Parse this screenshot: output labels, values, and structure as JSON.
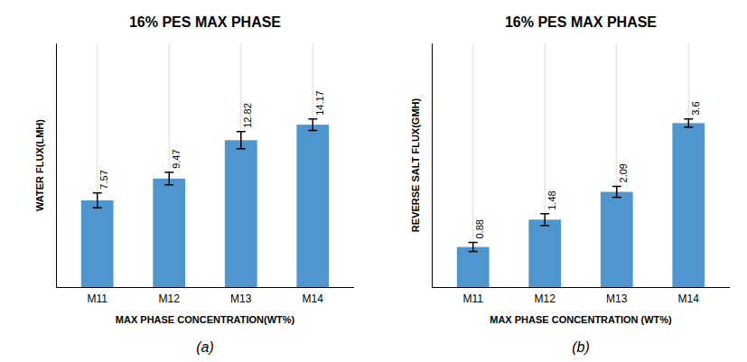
{
  "chart_data": [
    {
      "type": "bar",
      "title": "16% PES MAX PHASE",
      "x_label": "MAX PHASE CONCENTRATION(WT%)",
      "y_label": "WATER FLUX(LMH)",
      "categories": [
        "M11",
        "M12",
        "M13",
        "M14"
      ],
      "values": [
        7.57,
        9.47,
        12.82,
        14.17
      ],
      "errors": [
        0.65,
        0.55,
        0.75,
        0.5
      ],
      "color": "#4f96d0",
      "ylim": [
        0,
        21.2715
      ],
      "grid": true,
      "data_labels": true,
      "tick_labels": "x",
      "annotation": "(a)"
    },
    {
      "type": "bar",
      "title": "16% PES MAX PHASE",
      "x_label": "MAX PHASE CONCENTRATION (WT%)",
      "y_label": "REVERSE SALT FLUX(GMH)",
      "categories": [
        "M11",
        "M12",
        "M13",
        "M14"
      ],
      "values": [
        0.88,
        1.48,
        2.09,
        3.6
      ],
      "errors": [
        0.1,
        0.13,
        0.12,
        0.09
      ],
      "color": "#4f96d0",
      "ylim": [
        0,
        5.3505
      ],
      "grid": true,
      "data_labels": true,
      "tick_labels": "x",
      "annotation": "(b)"
    }
  ]
}
